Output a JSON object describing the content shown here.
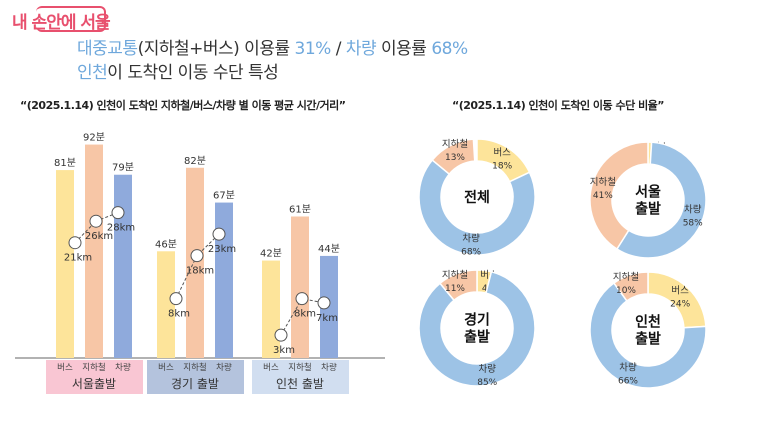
{
  "brand": "내 손안에 서울",
  "headline": {
    "part1_blue": "대중교통",
    "part1": "(지하철+버스) 이용률 ",
    "part1_pct": "31%",
    "sep": " / ",
    "part2_blue": "차량",
    "part2": " 이용률 ",
    "part2_pct": "68%",
    "line2_blue": "인천",
    "line2": "이 도착인 이동 수단 특성"
  },
  "colors": {
    "bus": "#fde49a",
    "subway": "#f7c6a6",
    "car": "#8faadc",
    "car_donut": "#9dc3e6",
    "seoul": "#f9c6d3",
    "gyeonggi": "#b4c3dd",
    "incheon": "#d1def0"
  },
  "chart_data": [
    {
      "type": "bar",
      "title": "“(2025.1.14) 인천이 도착인 지하철/버스/차량 별 이동 평균 시간/거리”",
      "categories": [
        "서울출발",
        "경기 출발",
        "인천 출발"
      ],
      "subcategories": [
        "버스",
        "지하철",
        "차량"
      ],
      "series": [
        {
          "name": "시간",
          "unit": "분",
          "values": [
            [
              81,
              92,
              79
            ],
            [
              46,
              82,
              67
            ],
            [
              42,
              61,
              44
            ]
          ]
        },
        {
          "name": "거리",
          "unit": "km",
          "values": [
            [
              21,
              26,
              28
            ],
            [
              8,
              18,
              23
            ],
            [
              3,
              8,
              7
            ]
          ]
        }
      ]
    },
    {
      "type": "pie",
      "title": "“(2025.1.14) 인천이 도착인 이동 수단 비율”",
      "charts": [
        {
          "label": "전체",
          "slices": [
            {
              "name": "버스",
              "value": 18
            },
            {
              "name": "차량",
              "value": 68
            },
            {
              "name": "지하철",
              "value": 13
            }
          ]
        },
        {
          "label": "서울\n출발",
          "slices": [
            {
              "name": "버스",
              "value": 1
            },
            {
              "name": "차량",
              "value": 58
            },
            {
              "name": "지하철",
              "value": 41
            }
          ]
        },
        {
          "label": "경기\n출발",
          "slices": [
            {
              "name": "버스",
              "value": 4
            },
            {
              "name": "차량",
              "value": 85
            },
            {
              "name": "지하철",
              "value": 11
            }
          ]
        },
        {
          "label": "인천\n출발",
          "slices": [
            {
              "name": "버스",
              "value": 24
            },
            {
              "name": "차량",
              "value": 66
            },
            {
              "name": "지하철",
              "value": 10
            }
          ]
        }
      ]
    }
  ]
}
